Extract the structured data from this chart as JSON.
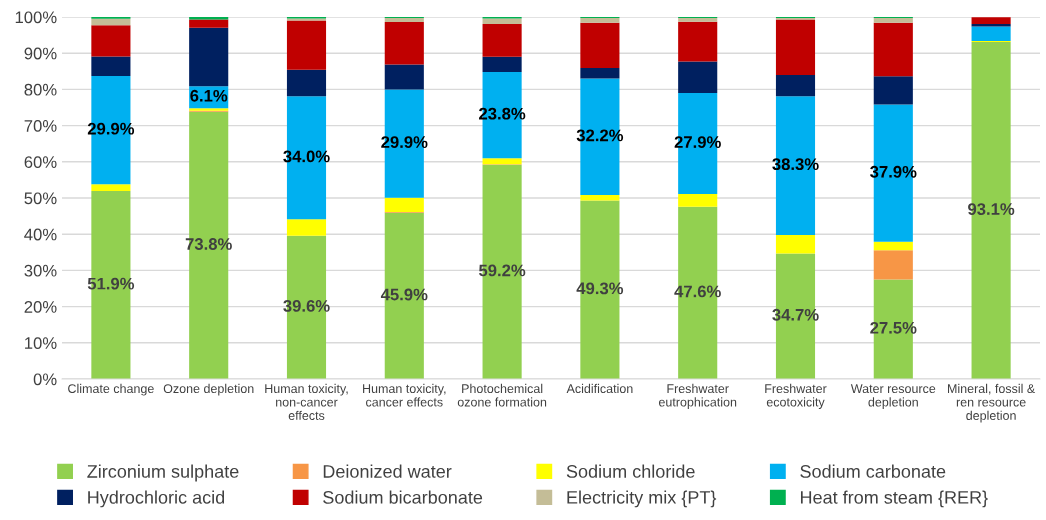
{
  "chart_data": {
    "type": "bar",
    "stacked": true,
    "categories": [
      "Climate change",
      "Ozone depletion",
      "Human toxicity, non-cancer effects",
      "Human toxicity, cancer effects",
      "Photochemical ozone formation",
      "Acidification",
      "Freshwater eutrophication",
      "Freshwater ecotoxicity",
      "Water resource depletion",
      "Mineral, fossil & ren resource depletion"
    ],
    "series": [
      {
        "name": "Zirconium sulphate",
        "color": "#92d050",
        "values": [
          51.9,
          73.8,
          39.6,
          45.9,
          59.2,
          49.3,
          47.6,
          34.7,
          27.5,
          93.1
        ],
        "value_labels": [
          "51.9%",
          "73.8%",
          "39.6%",
          "45.9%",
          "59.2%",
          "49.3%",
          "47.6%",
          "34.7%",
          "27.5%",
          "93.1%"
        ]
      },
      {
        "name": "Deionized water",
        "color": "#f79646",
        "values": [
          0,
          0.3,
          0,
          0.2,
          0.1,
          0,
          0,
          0,
          8.1,
          null
        ]
      },
      {
        "name": "Sodium chloride",
        "color": "#ffff00",
        "values": [
          1.9,
          0.7,
          4.5,
          4.0,
          1.7,
          1.5,
          3.5,
          5.1,
          2.3,
          0.3
        ]
      },
      {
        "name": "Sodium carbonate",
        "color": "#00b0f0",
        "values": [
          29.9,
          6.1,
          34.0,
          29.9,
          23.8,
          32.2,
          27.9,
          38.3,
          37.9,
          4.0
        ],
        "value_labels": [
          "29.9%",
          "6.1%",
          "34.0%",
          "29.9%",
          "23.8%",
          "32.2%",
          "27.9%",
          "38.3%",
          "37.9%",
          null
        ]
      },
      {
        "name": "Hydrochloric acid",
        "color": "#002060",
        "values": [
          5.4,
          16.1,
          7.3,
          6.9,
          4.2,
          2.9,
          8.7,
          5.9,
          7.8,
          0.7
        ]
      },
      {
        "name": "Sodium bicarbonate",
        "color": "#c00000",
        "values": [
          8.6,
          2.3,
          13.6,
          11.7,
          9.1,
          12.5,
          11.0,
          15.3,
          14.8,
          1.8
        ]
      },
      {
        "name": "Electricity mix {PT}",
        "color": "#c4bd97",
        "values": [
          1.8,
          0,
          0.6,
          1.1,
          1.5,
          1.3,
          1.0,
          0.4,
          1.3,
          0
        ]
      },
      {
        "name": "Heat from steam {RER}",
        "color": "#00b050",
        "values": [
          0.5,
          0.7,
          0.4,
          0.3,
          0.4,
          0.3,
          0.3,
          0.3,
          0.3,
          0
        ]
      }
    ],
    "ylim": [
      0,
      100
    ],
    "yticks": [
      {
        "value": 0,
        "label": "0%"
      },
      {
        "value": 10,
        "label": "10%"
      },
      {
        "value": 20,
        "label": "20%"
      },
      {
        "value": 30,
        "label": "30%"
      },
      {
        "value": 40,
        "label": "40%"
      },
      {
        "value": 50,
        "label": "50%"
      },
      {
        "value": 60,
        "label": "60%"
      },
      {
        "value": 70,
        "label": "70%"
      },
      {
        "value": 80,
        "label": "80%"
      },
      {
        "value": 90,
        "label": "90%"
      },
      {
        "value": 100,
        "label": "100%"
      }
    ],
    "grid": "y",
    "legend": "bottom"
  }
}
